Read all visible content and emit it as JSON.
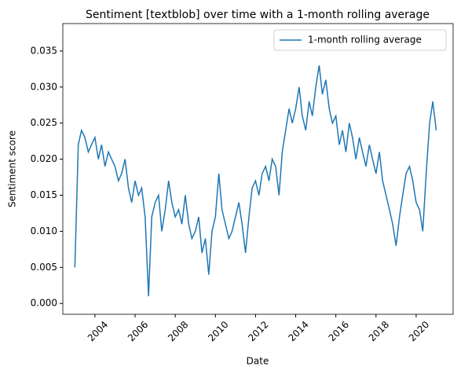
{
  "chart_data": {
    "type": "line",
    "title": "Sentiment [textblob] over time with a 1-month rolling average",
    "x_label": "Date",
    "y_label": "Sentiment score",
    "legend": "upper right",
    "x": [
      2003.0,
      2003.17,
      2003.33,
      2003.5,
      2003.67,
      2003.83,
      2004.0,
      2004.17,
      2004.33,
      2004.5,
      2004.67,
      2004.83,
      2005.0,
      2005.17,
      2005.33,
      2005.5,
      2005.67,
      2005.83,
      2006.0,
      2006.17,
      2006.33,
      2006.5,
      2006.67,
      2006.83,
      2007.0,
      2007.17,
      2007.33,
      2007.5,
      2007.67,
      2007.83,
      2008.0,
      2008.17,
      2008.33,
      2008.5,
      2008.67,
      2008.83,
      2009.0,
      2009.17,
      2009.33,
      2009.5,
      2009.67,
      2009.83,
      2010.0,
      2010.17,
      2010.33,
      2010.5,
      2010.67,
      2010.83,
      2011.0,
      2011.17,
      2011.33,
      2011.5,
      2011.67,
      2011.83,
      2012.0,
      2012.17,
      2012.33,
      2012.5,
      2012.67,
      2012.83,
      2013.0,
      2013.17,
      2013.33,
      2013.5,
      2013.67,
      2013.83,
      2014.0,
      2014.17,
      2014.33,
      2014.5,
      2014.67,
      2014.83,
      2015.0,
      2015.17,
      2015.33,
      2015.5,
      2015.67,
      2015.83,
      2016.0,
      2016.17,
      2016.33,
      2016.5,
      2016.67,
      2016.83,
      2017.0,
      2017.17,
      2017.33,
      2017.5,
      2017.67,
      2017.83,
      2018.0,
      2018.17,
      2018.33,
      2018.5,
      2018.67,
      2018.83,
      2019.0,
      2019.17,
      2019.33,
      2019.5,
      2019.67,
      2019.83,
      2020.0,
      2020.17,
      2020.33,
      2020.5,
      2020.67,
      2020.83,
      2021.0
    ],
    "series": [
      {
        "name": "1-month rolling average",
        "color": "#1f77b4",
        "values": [
          0.005,
          0.022,
          0.024,
          0.023,
          0.021,
          0.022,
          0.023,
          0.02,
          0.022,
          0.019,
          0.021,
          0.02,
          0.019,
          0.017,
          0.018,
          0.02,
          0.016,
          0.014,
          0.017,
          0.015,
          0.016,
          0.012,
          0.001,
          0.012,
          0.014,
          0.015,
          0.01,
          0.013,
          0.017,
          0.014,
          0.012,
          0.013,
          0.011,
          0.015,
          0.011,
          0.009,
          0.01,
          0.012,
          0.007,
          0.009,
          0.004,
          0.01,
          0.012,
          0.018,
          0.013,
          0.011,
          0.009,
          0.01,
          0.012,
          0.014,
          0.011,
          0.007,
          0.012,
          0.016,
          0.017,
          0.015,
          0.018,
          0.019,
          0.017,
          0.02,
          0.019,
          0.015,
          0.021,
          0.024,
          0.027,
          0.025,
          0.027,
          0.03,
          0.026,
          0.024,
          0.028,
          0.026,
          0.03,
          0.033,
          0.029,
          0.031,
          0.027,
          0.025,
          0.026,
          0.022,
          0.024,
          0.021,
          0.025,
          0.023,
          0.02,
          0.023,
          0.021,
          0.019,
          0.022,
          0.02,
          0.018,
          0.021,
          0.017,
          0.015,
          0.013,
          0.011,
          0.008,
          0.012,
          0.015,
          0.018,
          0.019,
          0.017,
          0.014,
          0.013,
          0.01,
          0.018,
          0.025,
          0.028,
          0.024
        ]
      }
    ],
    "xlim": [
      2002.4,
      2021.84
    ],
    "xticks": [
      2004,
      2006,
      2008,
      2010,
      2012,
      2014,
      2016,
      2018,
      2020
    ],
    "ylim": [
      -0.0015,
      0.0388
    ],
    "yticks": [
      {
        "value": 0,
        "label": "0.000"
      },
      {
        "value": 0.005,
        "label": "0.005"
      },
      {
        "value": 0.01,
        "label": "0.010"
      },
      {
        "value": 0.015,
        "label": "0.015"
      },
      {
        "value": 0.02,
        "label": "0.020"
      },
      {
        "value": 0.025,
        "label": "0.025"
      },
      {
        "value": 0.03,
        "label": "0.030"
      },
      {
        "value": 0.035,
        "label": "0.035"
      }
    ]
  }
}
